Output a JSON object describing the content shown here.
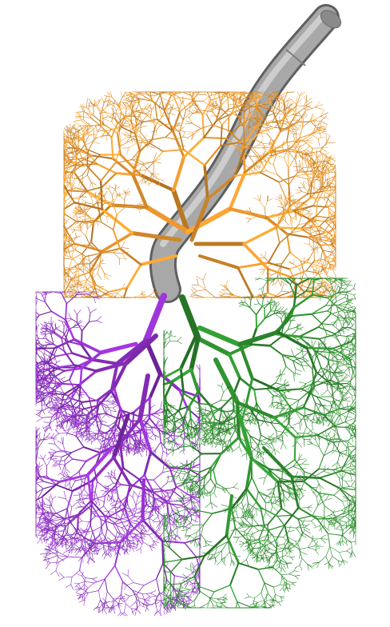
{
  "image": {
    "subject": "3d-lung-airway-tree-render",
    "background": "#ffffff"
  },
  "regions": [
    {
      "id": "trachea",
      "color": "#9a9a9a"
    },
    {
      "id": "upper-lobe",
      "color": "#e8962e"
    },
    {
      "id": "left-lower-lobe",
      "color": "#8e2fc4"
    },
    {
      "id": "right-lower-lobe",
      "color": "#2f8f2f"
    }
  ]
}
